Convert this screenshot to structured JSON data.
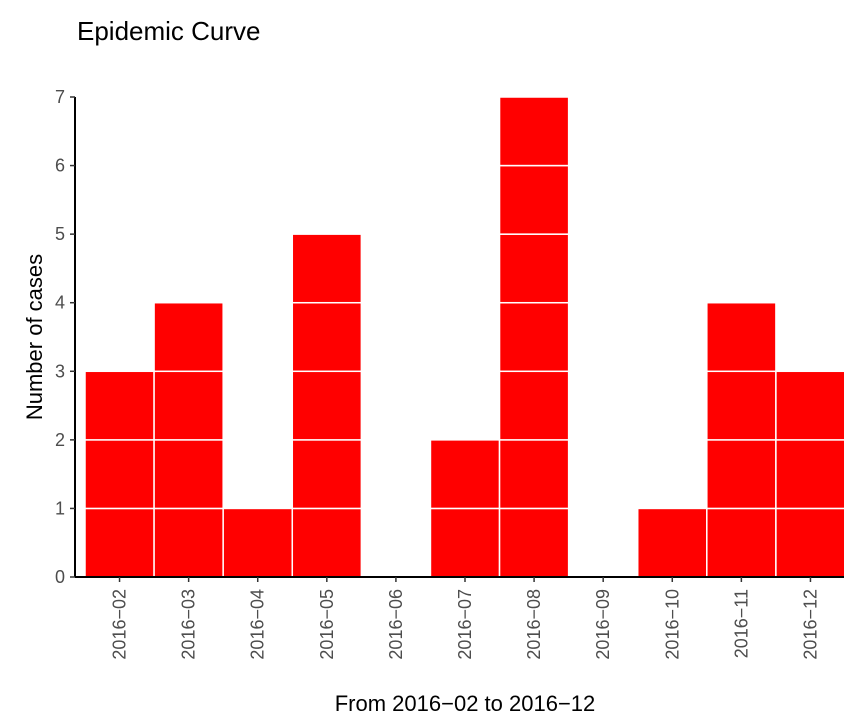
{
  "chart_data": {
    "type": "bar",
    "subtype": "epidemic-curve (stacked unit cases)",
    "title": "Epidemic Curve",
    "xlabel": "From 2016−02 to 2016−12",
    "ylabel": "Number of cases",
    "categories": [
      "2016−02",
      "2016−03",
      "2016−04",
      "2016−05",
      "2016−06",
      "2016−07",
      "2016−08",
      "2016−09",
      "2016−10",
      "2016−11",
      "2016−12"
    ],
    "values": [
      3,
      4,
      1,
      5,
      0,
      2,
      7,
      0,
      1,
      4,
      3
    ],
    "ylim": [
      0,
      7
    ],
    "yticks": [
      0,
      1,
      2,
      3,
      4,
      5,
      6,
      7
    ],
    "grid": false,
    "legend": "none",
    "bar_color": "#ff0000",
    "case_divider_color": "#ffffff"
  }
}
